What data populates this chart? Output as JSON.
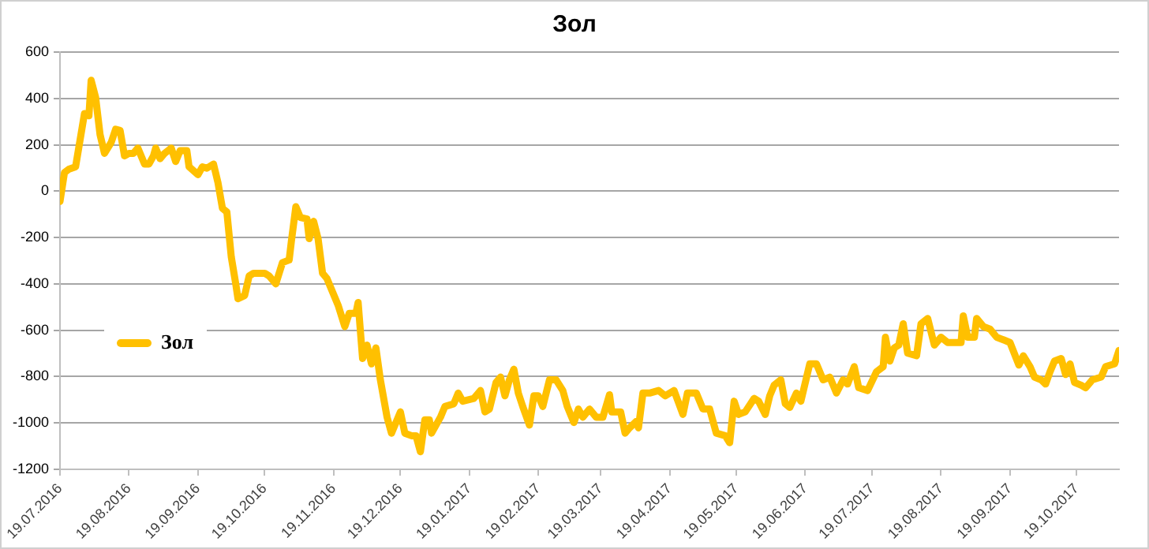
{
  "chart_data": {
    "type": "line",
    "title": "Зол",
    "x": [
      "2016-07-19",
      "2016-07-21",
      "2016-07-23",
      "2016-07-26",
      "2016-07-28",
      "2016-07-30",
      "2016-08-01",
      "2016-08-02",
      "2016-08-04",
      "2016-08-06",
      "2016-08-08",
      "2016-08-11",
      "2016-08-13",
      "2016-08-15",
      "2016-08-17",
      "2016-08-19",
      "2016-08-21",
      "2016-08-23",
      "2016-08-26",
      "2016-08-28",
      "2016-08-30",
      "2016-08-31",
      "2016-09-02",
      "2016-09-04",
      "2016-09-07",
      "2016-09-09",
      "2016-09-11",
      "2016-09-14",
      "2016-09-15",
      "2016-09-19",
      "2016-09-21",
      "2016-09-23",
      "2016-09-26",
      "2016-09-28",
      "2016-09-30",
      "2016-10-02",
      "2016-10-04",
      "2016-10-06",
      "2016-10-07",
      "2016-10-10",
      "2016-10-12",
      "2016-10-14",
      "2016-10-17",
      "2016-10-19",
      "2016-10-21",
      "2016-10-24",
      "2016-10-27",
      "2016-10-30",
      "2016-10-31",
      "2016-11-02",
      "2016-11-04",
      "2016-11-07",
      "2016-11-08",
      "2016-11-10",
      "2016-11-12",
      "2016-11-14",
      "2016-11-16",
      "2016-11-19",
      "2016-11-21",
      "2016-11-24",
      "2016-11-26",
      "2016-11-29",
      "2016-11-30",
      "2016-12-02",
      "2016-12-04",
      "2016-12-06",
      "2016-12-08",
      "2016-12-10",
      "2016-12-13",
      "2016-12-15",
      "2016-12-19",
      "2016-12-21",
      "2016-12-24",
      "2016-12-26",
      "2016-12-28",
      "2016-12-30",
      "2017-01-01",
      "2017-01-02",
      "2017-01-06",
      "2017-01-08",
      "2017-01-12",
      "2017-01-14",
      "2017-01-16",
      "2017-01-21",
      "2017-01-24",
      "2017-01-26",
      "2017-01-28",
      "2017-01-31",
      "2017-02-02",
      "2017-02-04",
      "2017-02-06",
      "2017-02-08",
      "2017-02-10",
      "2017-02-12",
      "2017-02-15",
      "2017-02-17",
      "2017-02-19",
      "2017-02-21",
      "2017-02-24",
      "2017-02-27",
      "2017-03-02",
      "2017-03-04",
      "2017-03-07",
      "2017-03-09",
      "2017-03-11",
      "2017-03-14",
      "2017-03-17",
      "2017-03-20",
      "2017-03-23",
      "2017-03-24",
      "2017-03-28",
      "2017-03-30",
      "2017-04-01",
      "2017-04-04",
      "2017-04-05",
      "2017-04-07",
      "2017-04-10",
      "2017-04-14",
      "2017-04-17",
      "2017-04-21",
      "2017-04-25",
      "2017-04-27",
      "2017-05-01",
      "2017-05-04",
      "2017-05-07",
      "2017-05-10",
      "2017-05-14",
      "2017-05-16",
      "2017-05-18",
      "2017-05-20",
      "2017-05-23",
      "2017-05-27",
      "2017-05-29",
      "2017-06-01",
      "2017-06-03",
      "2017-06-05",
      "2017-06-08",
      "2017-06-10",
      "2017-06-12",
      "2017-06-15",
      "2017-06-17",
      "2017-06-21",
      "2017-06-24",
      "2017-06-27",
      "2017-06-30",
      "2017-07-03",
      "2017-07-06",
      "2017-07-08",
      "2017-07-11",
      "2017-07-13",
      "2017-07-17",
      "2017-07-21",
      "2017-07-24",
      "2017-07-25",
      "2017-07-27",
      "2017-07-29",
      "2017-07-31",
      "2017-08-02",
      "2017-08-04",
      "2017-08-08",
      "2017-08-10",
      "2017-08-13",
      "2017-08-16",
      "2017-08-19",
      "2017-08-22",
      "2017-08-25",
      "2017-08-28",
      "2017-08-29",
      "2017-08-31",
      "2017-09-03",
      "2017-09-04",
      "2017-09-07",
      "2017-09-10",
      "2017-09-13",
      "2017-09-16",
      "2017-09-19",
      "2017-09-23",
      "2017-09-25",
      "2017-09-28",
      "2017-09-30",
      "2017-10-03",
      "2017-10-05",
      "2017-10-07",
      "2017-10-09",
      "2017-10-12",
      "2017-10-14",
      "2017-10-16",
      "2017-10-18",
      "2017-10-21",
      "2017-10-23",
      "2017-10-26",
      "2017-10-30",
      "2017-11-01",
      "2017-11-05",
      "2017-11-07"
    ],
    "series": [
      {
        "name": "Зол",
        "color": "#ffc000",
        "values": [
          -44,
          80,
          95,
          105,
          220,
          335,
          325,
          478,
          405,
          244,
          163,
          210,
          267,
          262,
          152,
          163,
          163,
          186,
          117,
          117,
          152,
          186,
          140,
          163,
          186,
          128,
          175,
          175,
          105,
          71,
          105,
          99,
          117,
          37,
          -74,
          -90,
          -285,
          -400,
          -464,
          -450,
          -366,
          -354,
          -354,
          -354,
          -366,
          -400,
          -308,
          -297,
          -216,
          -67,
          -113,
          -120,
          -205,
          -130,
          -205,
          -354,
          -377,
          -446,
          -492,
          -584,
          -527,
          -527,
          -480,
          -722,
          -664,
          -745,
          -676,
          -814,
          -975,
          -1044,
          -952,
          -1044,
          -1055,
          -1055,
          -1124,
          -986,
          -986,
          -1044,
          -975,
          -929,
          -917,
          -871,
          -906,
          -894,
          -860,
          -952,
          -940,
          -825,
          -802,
          -883,
          -814,
          -768,
          -871,
          -929,
          -1009,
          -883,
          -883,
          -929,
          -814,
          -814,
          -860,
          -929,
          -998,
          -940,
          -975,
          -940,
          -975,
          -975,
          -878,
          -952,
          -952,
          -1044,
          -1021,
          -993,
          -1021,
          -871,
          -871,
          -860,
          -883,
          -860,
          -963,
          -871,
          -871,
          -940,
          -940,
          -1044,
          -1055,
          -1085,
          -906,
          -963,
          -952,
          -894,
          -906,
          -963,
          -883,
          -837,
          -814,
          -917,
          -933,
          -871,
          -906,
          -745,
          -745,
          -814,
          -802,
          -871,
          -814,
          -832,
          -757,
          -848,
          -860,
          -779,
          -757,
          -630,
          -733,
          -676,
          -664,
          -572,
          -699,
          -710,
          -572,
          -549,
          -664,
          -630,
          -653,
          -653,
          -653,
          -538,
          -630,
          -630,
          -549,
          -584,
          -595,
          -630,
          -641,
          -653,
          -750,
          -710,
          -757,
          -802,
          -814,
          -832,
          -779,
          -733,
          -722,
          -791,
          -745,
          -825,
          -837,
          -848,
          -814,
          -802,
          -757,
          -745,
          -687
        ]
      }
    ],
    "xlim": [
      "2016-07-19",
      "2017-11-07"
    ],
    "xticks": [
      {
        "value": "2016-07-19",
        "label": "19.07.2016"
      },
      {
        "value": "2016-08-19",
        "label": "19.08.2016"
      },
      {
        "value": "2016-09-19",
        "label": "19.09.2016"
      },
      {
        "value": "2016-10-19",
        "label": "19.10.2016"
      },
      {
        "value": "2016-11-19",
        "label": "19.11.2016"
      },
      {
        "value": "2016-12-19",
        "label": "19.12.2016"
      },
      {
        "value": "2017-01-19",
        "label": "19.01.2017"
      },
      {
        "value": "2017-02-19",
        "label": "19.02.2017"
      },
      {
        "value": "2017-03-19",
        "label": "19.03.2017"
      },
      {
        "value": "2017-04-19",
        "label": "19.04.2017"
      },
      {
        "value": "2017-05-19",
        "label": "19.05.2017"
      },
      {
        "value": "2017-06-19",
        "label": "19.06.2017"
      },
      {
        "value": "2017-07-19",
        "label": "19.07.2017"
      },
      {
        "value": "2017-08-19",
        "label": "19.08.2017"
      },
      {
        "value": "2017-09-19",
        "label": "19.09.2017"
      },
      {
        "value": "2017-10-19",
        "label": "19.10.2017"
      }
    ],
    "ylim": [
      -1200,
      600
    ],
    "yticks": [
      -1200,
      -1000,
      -800,
      -600,
      -400,
      -200,
      0,
      200,
      400,
      600
    ],
    "grid": "y",
    "legend": "left",
    "marker": "none",
    "line_style": "solid"
  }
}
